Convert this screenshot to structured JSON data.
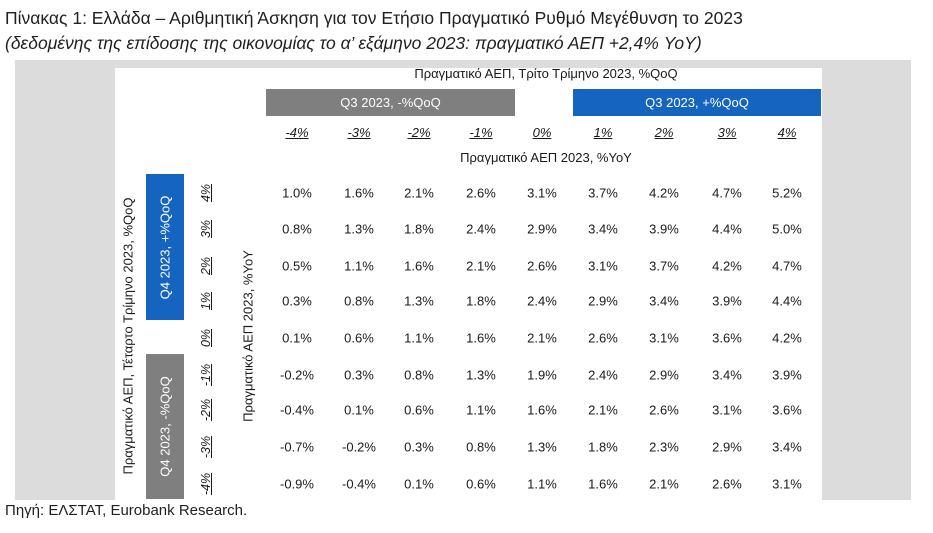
{
  "title": "Πίνακας 1: Ελλάδα – Αριθμητική Άσκηση για τον Ετήσιο Πραγματικό Ρυθμό Μεγέθυνση το 2023",
  "subtitle": "(δεδομένης της επίδοσης της οικονομίας το α’ εξάμηνο 2023: πραγματικό ΑΕΠ +2,4% YoY)",
  "top_axis_label": "Πραγματικό ΑΕΠ, Τρίτο Τρίμηνο 2023, %QoQ",
  "neg_box_label": "Q3 2023, -%QoQ",
  "pos_box_label": "Q3 2023, +%QoQ",
  "column_headers": [
    "-4%",
    "-3%",
    "-2%",
    "-1%",
    "0%",
    "1%",
    "2%",
    "3%",
    "4%"
  ],
  "yoy_label": "Πραγματικό ΑΕΠ 2023, %YoY",
  "left_axis_label": "Πραγματικό ΑΕΠ, Τέταρτο Τρίμηνο 2023, %QoQ",
  "q4_pos_label": "Q4 2023, +%QoQ",
  "q4_neg_label": "Q4 2023, -%QoQ",
  "yoy_vertical_label": "Πραγματικό ΑΕΠ 2023, %YoY",
  "row_headers": [
    "4%",
    "3%",
    "2%",
    "1%",
    "0%",
    "-1%",
    "-2%",
    "-3%",
    "-4%"
  ],
  "rows": [
    [
      "1.0%",
      "1.6%",
      "2.1%",
      "2.6%",
      "3.1%",
      "3.7%",
      "4.2%",
      "4.7%",
      "5.2%"
    ],
    [
      "0.8%",
      "1.3%",
      "1.8%",
      "2.4%",
      "2.9%",
      "3.4%",
      "3.9%",
      "4.4%",
      "5.0%"
    ],
    [
      "0.5%",
      "1.1%",
      "1.6%",
      "2.1%",
      "2.6%",
      "3.1%",
      "3.7%",
      "4.2%",
      "4.7%"
    ],
    [
      "0.3%",
      "0.8%",
      "1.3%",
      "1.8%",
      "2.4%",
      "2.9%",
      "3.4%",
      "3.9%",
      "4.4%"
    ],
    [
      "0.1%",
      "0.6%",
      "1.1%",
      "1.6%",
      "2.1%",
      "2.6%",
      "3.1%",
      "3.6%",
      "4.2%"
    ],
    [
      "-0.2%",
      "0.3%",
      "0.8%",
      "1.3%",
      "1.9%",
      "2.4%",
      "2.9%",
      "3.4%",
      "3.9%"
    ],
    [
      "-0.4%",
      "0.1%",
      "0.6%",
      "1.1%",
      "1.6%",
      "2.1%",
      "2.6%",
      "3.1%",
      "3.6%"
    ],
    [
      "-0.7%",
      "-0.2%",
      "0.3%",
      "0.8%",
      "1.3%",
      "1.8%",
      "2.3%",
      "2.9%",
      "3.4%"
    ],
    [
      "-0.9%",
      "-0.4%",
      "0.1%",
      "0.6%",
      "1.1%",
      "1.6%",
      "2.1%",
      "2.6%",
      "3.1%"
    ]
  ],
  "source": "Πηγή: ΕΛΣΤΑΤ, Eurobank Research.",
  "colors": {
    "grey_box": "#7f7f7f",
    "blue_box": "#1565c0",
    "frame": "#dcdcdc"
  }
}
